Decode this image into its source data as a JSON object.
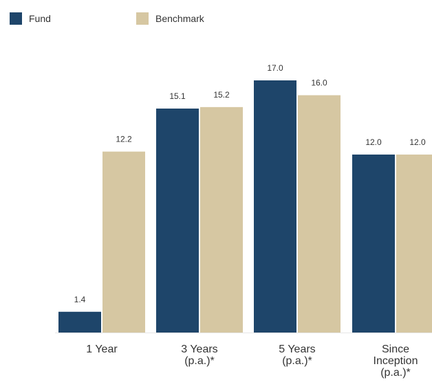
{
  "chart_data": {
    "type": "bar",
    "categories": [
      [
        "1 Year"
      ],
      [
        "3 Years",
        "(p.a.)*"
      ],
      [
        "5 Years",
        "(p.a.)*"
      ],
      [
        "Since",
        "Inception",
        "(p.a.)*"
      ]
    ],
    "series": [
      {
        "name": "Fund",
        "color": "#1e456a",
        "values": [
          1.4,
          15.1,
          17.0,
          12.0
        ]
      },
      {
        "name": "Benchmark",
        "color": "#d6c7a2",
        "values": [
          12.2,
          15.2,
          16.0,
          12.0
        ]
      }
    ],
    "value_labels": [
      [
        "1.4",
        "15.1",
        "17.0",
        "12.0"
      ],
      [
        "12.2",
        "15.2",
        "16.0",
        "12.0"
      ]
    ],
    "title": "",
    "xlabel": "",
    "ylabel": "",
    "ylim": [
      0,
      17
    ],
    "grid": false,
    "legend_position": "top-left"
  }
}
